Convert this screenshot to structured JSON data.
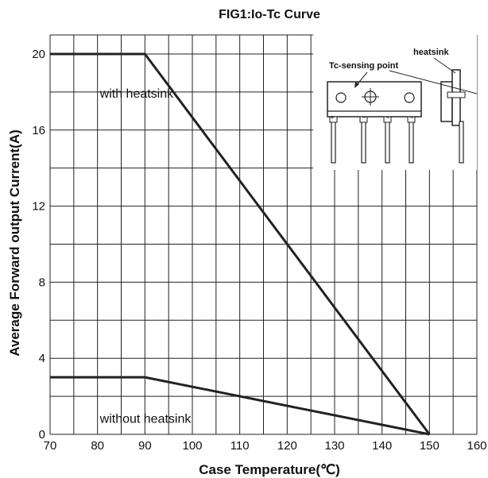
{
  "chart_data": {
    "type": "line",
    "title": "FIG1:Io-Tc Curve",
    "xlabel": "Case Temperature(℃)",
    "ylabel": "Average Forward output Current(A)",
    "xlim": [
      70,
      160
    ],
    "ylim": [
      0,
      21
    ],
    "x_ticks": [
      70,
      80,
      90,
      100,
      110,
      120,
      130,
      140,
      150,
      160
    ],
    "y_ticks": [
      0,
      4,
      8,
      12,
      16,
      20
    ],
    "grid": true,
    "series": [
      {
        "name": "with heatsink",
        "x": [
          70,
          90,
          150
        ],
        "y": [
          20,
          20,
          0
        ]
      },
      {
        "name": "without heatsink",
        "x": [
          70,
          90,
          150
        ],
        "y": [
          3,
          3,
          0
        ]
      }
    ],
    "annotations": [
      {
        "text": "with heatsink",
        "x": 80.5,
        "y": 17.7
      },
      {
        "text": "without heatsink",
        "x": 80.5,
        "y": 0.6
      }
    ],
    "inset": {
      "labels": [
        "heatsink",
        "Tc-sensing point"
      ],
      "pin_marks": [
        "+",
        "~",
        "~",
        "−"
      ]
    }
  }
}
